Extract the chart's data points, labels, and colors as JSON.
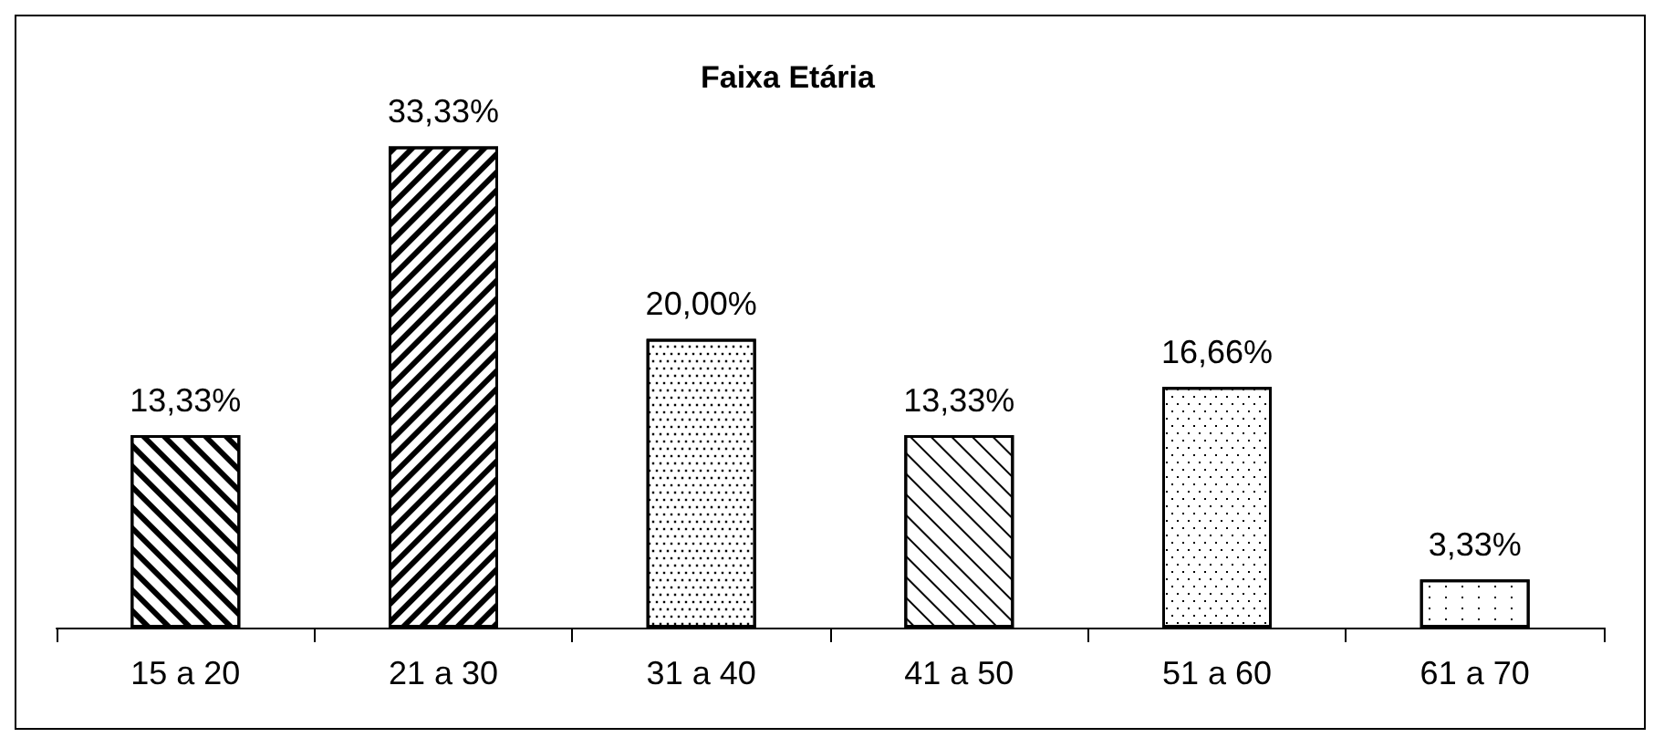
{
  "chart_data": {
    "type": "bar",
    "title": "Faixa Etária",
    "categories": [
      "15 a 20",
      "21 a 30",
      "31 a 40",
      "41 a 50",
      "51 a 60",
      "61 a 70"
    ],
    "values": [
      13.33,
      33.33,
      20.0,
      13.33,
      16.66,
      3.33
    ],
    "value_labels": [
      "13,33%",
      "33,33%",
      "20,00%",
      "13,33%",
      "16,66%",
      "3,33%"
    ],
    "color": "#000000"
  }
}
